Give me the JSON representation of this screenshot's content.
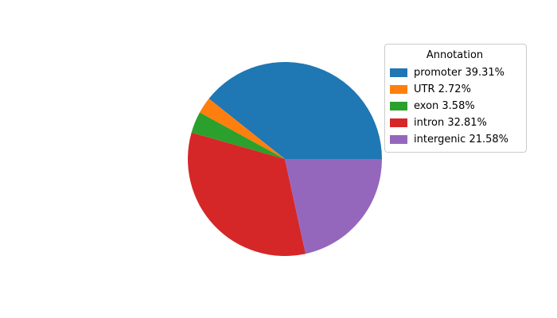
{
  "chart_data": {
    "type": "pie",
    "legend_title": "Annotation",
    "categories": [
      "promoter",
      "UTR",
      "exon",
      "intron",
      "intergenic"
    ],
    "values": [
      39.31,
      2.72,
      3.58,
      32.81,
      21.58
    ],
    "unit": "percent",
    "colors": [
      "#1f77b4",
      "#ff7f0e",
      "#2ca02c",
      "#d62728",
      "#9467bd"
    ],
    "legend_entries": [
      "promoter 39.31%",
      "UTR 2.72%",
      "exon 3.58%",
      "intron 32.81%",
      "intergenic 21.58%"
    ],
    "start_angle_deg": 0,
    "direction": "counterclockwise",
    "legend_position": "upper right",
    "background_color": "#ffffff"
  }
}
